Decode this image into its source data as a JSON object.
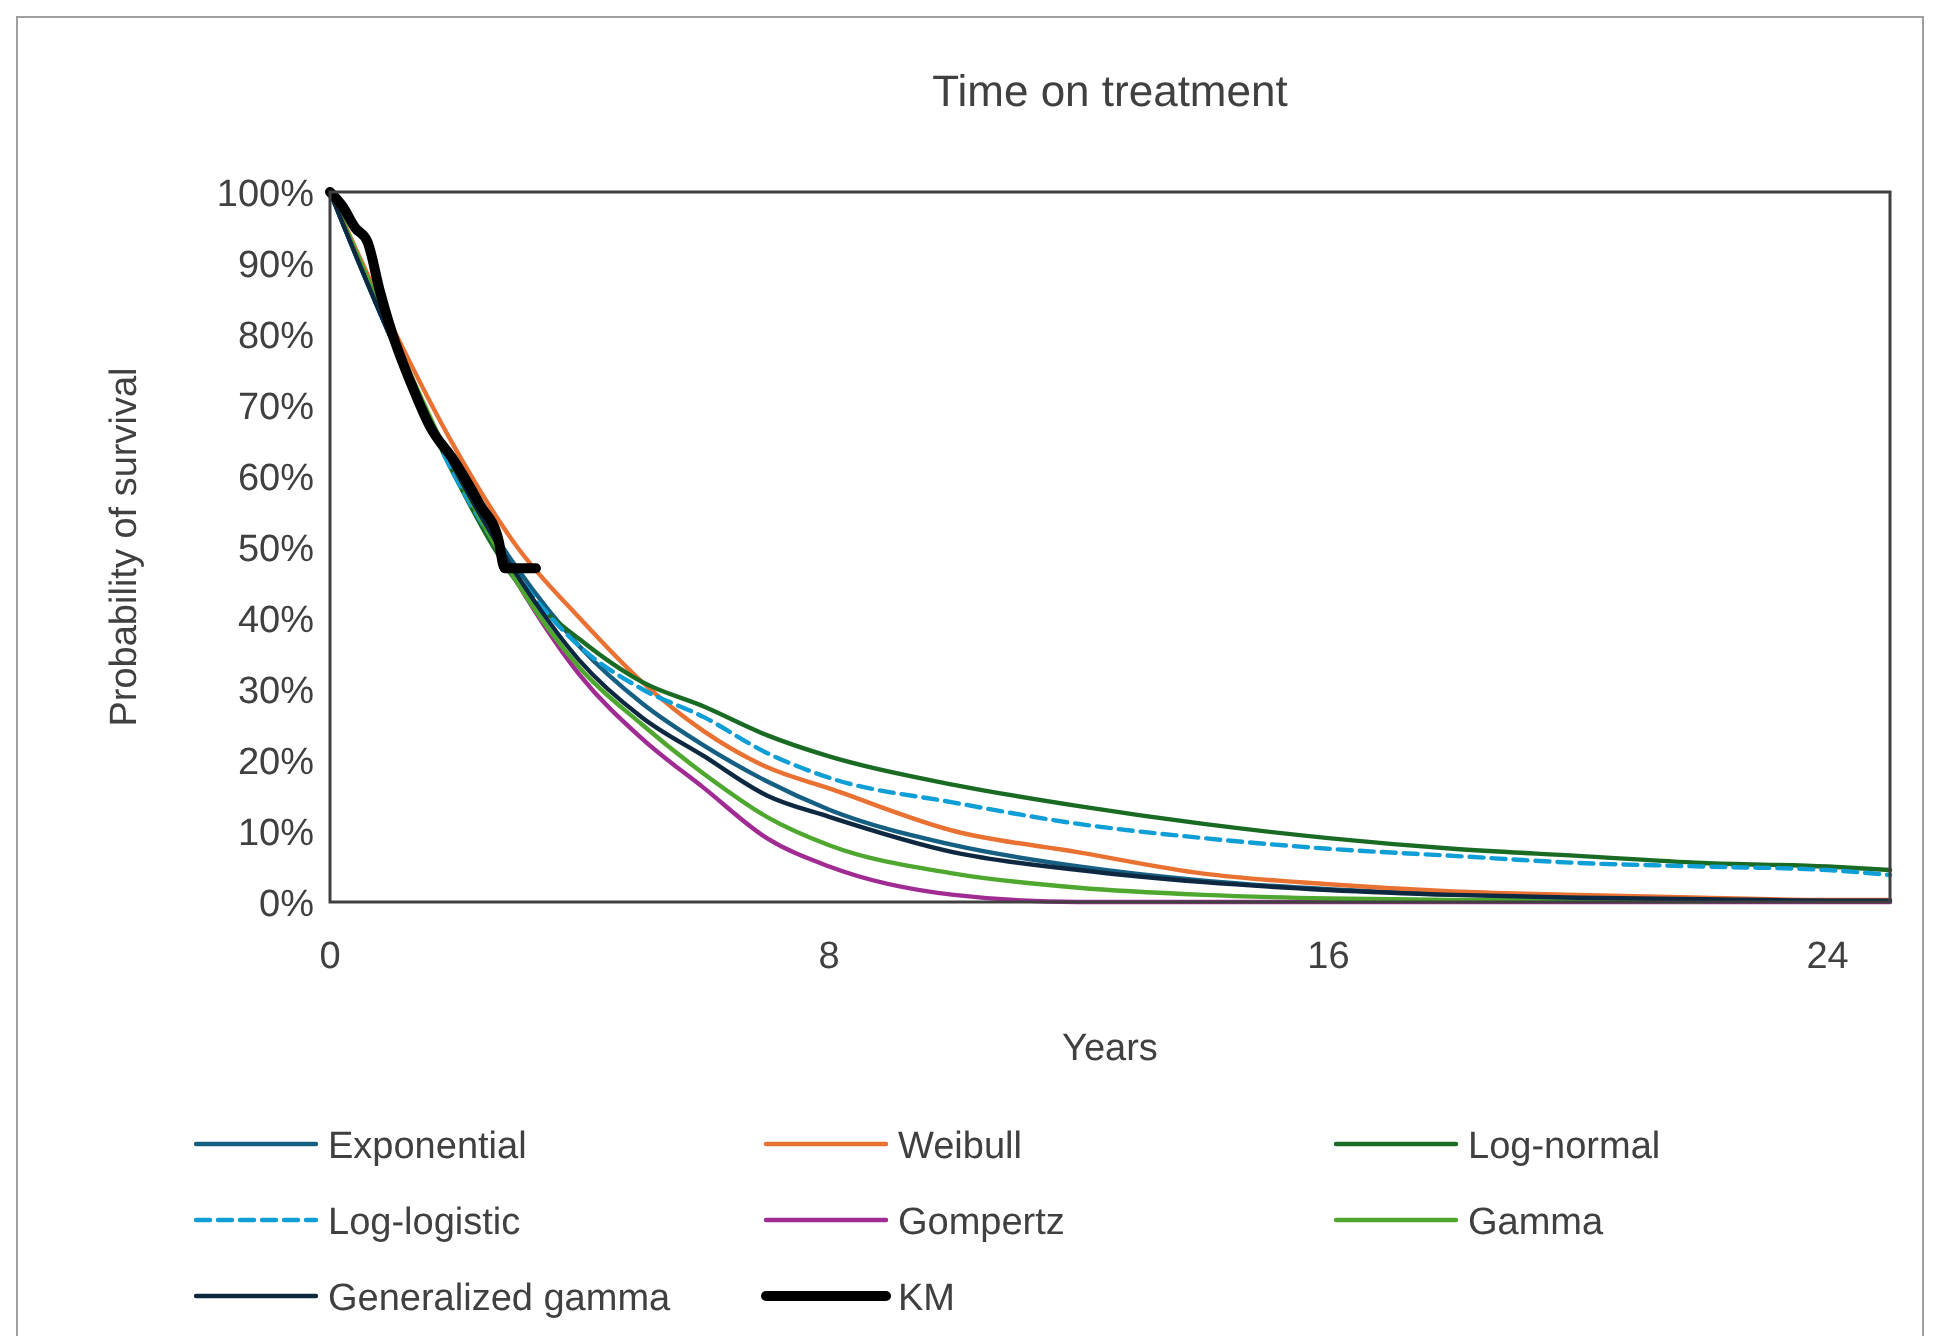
{
  "chart_data": {
    "type": "line",
    "title": "Time on treatment",
    "xlabel": "Years",
    "ylabel": "Probability of survival",
    "xlim": [
      0,
      25
    ],
    "xticks": [
      0,
      8,
      16,
      24
    ],
    "ylim": [
      0,
      100
    ],
    "yticks": [
      {
        "value": 0,
        "label": "0%"
      },
      {
        "value": 10,
        "label": "10%"
      },
      {
        "value": 20,
        "label": "20%"
      },
      {
        "value": 30,
        "label": "30%"
      },
      {
        "value": 40,
        "label": "40%"
      },
      {
        "value": 50,
        "label": "50%"
      },
      {
        "value": 60,
        "label": "60%"
      },
      {
        "value": 70,
        "label": "70%"
      },
      {
        "value": 80,
        "label": "80%"
      },
      {
        "value": 90,
        "label": "90%"
      },
      {
        "value": 100,
        "label": "100%"
      }
    ],
    "grid": false,
    "legend": "bottom",
    "x": [
      0,
      1,
      2,
      3,
      4,
      5,
      6,
      7,
      8,
      10,
      12,
      14,
      16,
      18,
      20,
      22,
      24,
      25
    ],
    "series": [
      {
        "name": "Exponential",
        "color": "#156082",
        "values": [
          100,
          79,
          61,
          47,
          36,
          28,
          22,
          17,
          13,
          8,
          5,
          3,
          1.8,
          1.1,
          0.6,
          null,
          null,
          null
        ]
      },
      {
        "name": "Weibull",
        "color": "#e97132",
        "values": [
          100,
          81,
          64,
          50,
          40,
          31,
          24,
          19,
          16,
          10,
          7,
          4,
          2.5,
          1.5,
          1,
          0.6,
          0.3,
          0.3
        ]
      },
      {
        "name": "Log-normal",
        "color": "#196b24",
        "values": [
          100,
          79,
          60,
          45,
          37,
          31,
          27.5,
          23.5,
          20.5,
          16.5,
          13.5,
          11,
          9,
          7.5,
          6.5,
          5.5,
          5,
          4.5
        ]
      },
      {
        "name": "Log-logistic",
        "color": "#0f9ed5",
        "values": [
          100,
          79,
          60,
          46,
          36,
          30,
          26,
          21,
          17.5,
          14,
          11,
          9,
          7.5,
          6.5,
          5.5,
          5,
          4.5,
          3.8
        ],
        "line_style": "dashed"
      },
      {
        "name": "Gompertz",
        "color": "#a02b93",
        "values": [
          null,
          null,
          61,
          45,
          32,
          23,
          16,
          9,
          5,
          1,
          0,
          null,
          0,
          0,
          0,
          0,
          0,
          0
        ]
      },
      {
        "name": "Gamma",
        "color": "#4ea72e",
        "values": [
          100,
          80,
          61,
          45,
          33,
          25,
          18,
          12,
          8,
          4,
          2,
          1,
          0.5,
          0.3,
          0.2,
          0.1,
          null,
          null
        ]
      },
      {
        "name": "Generalized gamma",
        "color": "#0e2841",
        "values": [
          100,
          79,
          61,
          46,
          34,
          26,
          20.5,
          15,
          12,
          7,
          4.5,
          2.8,
          1.7,
          1,
          0.6,
          0.4,
          0.2,
          0.2
        ]
      },
      {
        "name": "KM",
        "color": "#000000",
        "x": [
          0,
          0.2,
          0.4,
          0.6,
          0.8,
          1,
          1.3,
          1.6,
          2,
          2.4,
          2.7,
          2.8,
          3.3
        ],
        "values": [
          100,
          98,
          95,
          93,
          86,
          80,
          73,
          67,
          62,
          56,
          51,
          47,
          47
        ]
      }
    ]
  }
}
